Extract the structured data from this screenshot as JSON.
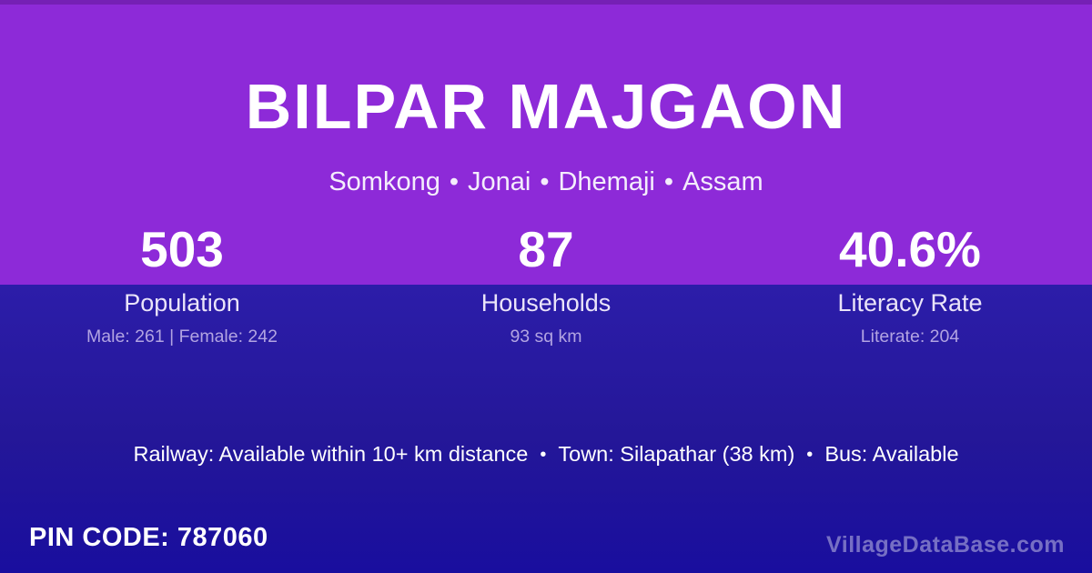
{
  "colors": {
    "purple_top": "#8d2ad8",
    "indigo_top": "#2c1da9",
    "indigo_bottom": "#190e9e",
    "title_text": "#ffffff",
    "detail_text": "#b2a4e2"
  },
  "header": {
    "title": "BILPAR MAJGAON",
    "location_parts": [
      "Somkong",
      "Jonai",
      "Dhemaji",
      "Assam"
    ],
    "separator": "•"
  },
  "stats": [
    {
      "value": "503",
      "label": "Population",
      "detail": "Male: 261 | Female: 242"
    },
    {
      "value": "87",
      "label": "Households",
      "detail": "93 sq km"
    },
    {
      "value": "40.6%",
      "label": "Literacy Rate",
      "detail": "Literate: 204"
    }
  ],
  "amenities": {
    "railway": "Railway: Available within 10+ km distance",
    "town": "Town: Silapathar (38 km)",
    "bus": "Bus: Available",
    "separator": "•"
  },
  "footer": {
    "pin_code": "PIN CODE: 787060",
    "watermark": "VillageDataBase.com"
  }
}
